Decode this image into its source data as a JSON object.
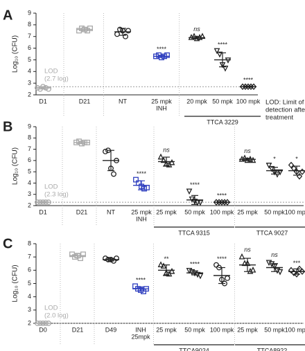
{
  "chart_data": [
    {
      "type": "scatter",
      "panel": "A",
      "ylabel": "Log₁₀ (CFU)",
      "ylim": [
        2,
        9
      ],
      "yticks": [
        2,
        3,
        4,
        5,
        6,
        7,
        8,
        9
      ],
      "lod": 2.7,
      "lod_label": [
        "LOD",
        "(2.7 log)"
      ],
      "note": [
        "LOD: Limit of",
        "detection after",
        "treatment"
      ],
      "dividers": [
        1,
        2,
        4
      ],
      "spans": [
        {
          "label": "TTCA 3229",
          "first": 4,
          "last": 6
        }
      ],
      "groups": [
        {
          "label": [
            "D1"
          ],
          "marker": "circle",
          "color": "#aaaaaa",
          "values": [
            2.6,
            2.5,
            2.7,
            2.6,
            2.5
          ],
          "mean": 2.6,
          "sd": 0.1
        },
        {
          "label": [
            "D21"
          ],
          "marker": "square",
          "color": "#aaaaaa",
          "values": [
            7.5,
            7.7,
            7.6,
            7.5,
            7.7
          ],
          "mean": 7.6,
          "sd": 0.1
        },
        {
          "label": [
            "NT"
          ],
          "marker": "circle",
          "color": "#222222",
          "values": [
            7.2,
            7.6,
            7.5,
            7.0,
            7.5
          ],
          "mean": 7.4,
          "sd": 0.3
        },
        {
          "label": [
            "25 mpk",
            "INH"
          ],
          "marker": "square",
          "color": "#2f3fbf",
          "values": [
            5.3,
            5.4,
            5.2,
            5.3,
            5.4
          ],
          "mean": 5.3,
          "sd": 0.1,
          "sig": "****"
        },
        {
          "label": [
            "20 mpk"
          ],
          "marker": "triangle",
          "color": "#222222",
          "values": [
            6.9,
            7.0,
            6.8,
            6.9,
            7.0
          ],
          "mean": 6.9,
          "sd": 0.1,
          "sig": "ns"
        },
        {
          "label": [
            "50 mpk"
          ],
          "marker": "triangle-down",
          "color": "#222222",
          "values": [
            5.8,
            5.5,
            4.6,
            4.3,
            5.0
          ],
          "mean": 5.0,
          "sd": 0.6,
          "sig": "****"
        },
        {
          "label": [
            "100 mpk"
          ],
          "marker": "diamond",
          "color": "#222222",
          "values": [
            2.7,
            2.7,
            2.7,
            2.7,
            2.7
          ],
          "mean": 2.7,
          "sd": 0.05,
          "sig": "****"
        }
      ]
    },
    {
      "type": "scatter",
      "panel": "B",
      "ylabel": "Log₁₀ (CFU)",
      "ylim": [
        2,
        9
      ],
      "yticks": [
        2,
        3,
        4,
        5,
        6,
        7,
        8,
        9
      ],
      "lod": 2.3,
      "lod_label": [
        "LOD",
        "(2.3 log)"
      ],
      "dividers": [
        1,
        2,
        4,
        7
      ],
      "spans": [
        {
          "label": "TTCA 9315",
          "first": 4,
          "last": 6
        },
        {
          "label": "TTCA 9027",
          "first": 7,
          "last": 9
        }
      ],
      "groups": [
        {
          "label": [
            "D1"
          ],
          "marker": "circle",
          "color": "#aaaaaa",
          "values": [
            2.3,
            2.3,
            2.3,
            2.3,
            2.3
          ],
          "mean": 2.3,
          "sd": 0.05
        },
        {
          "label": [
            "D21"
          ],
          "marker": "square",
          "color": "#aaaaaa",
          "values": [
            7.6,
            7.7,
            7.5,
            7.6,
            7.6
          ],
          "mean": 7.6,
          "sd": 0.1
        },
        {
          "label": [
            "NT"
          ],
          "marker": "circle",
          "color": "#222222",
          "values": [
            6.8,
            6.9,
            5.3,
            4.8,
            6.0
          ],
          "mean": 6.0,
          "sd": 0.9
        },
        {
          "label": [
            "25 mpk",
            "INH"
          ],
          "marker": "square",
          "color": "#2f3fbf",
          "values": [
            4.3,
            4.0,
            3.7,
            3.5,
            3.6
          ],
          "mean": 3.8,
          "sd": 0.4,
          "sig": "****"
        },
        {
          "label": [
            "25 mpk"
          ],
          "marker": "triangle",
          "color": "#222222",
          "values": [
            6.3,
            6.0,
            5.7,
            5.6,
            5.8
          ],
          "mean": 5.9,
          "sd": 0.4,
          "sig": "ns"
        },
        {
          "label": [
            "50 mpk"
          ],
          "marker": "triangle-down",
          "color": "#222222",
          "values": [
            3.3,
            2.6,
            2.4,
            2.3,
            2.3
          ],
          "mean": 2.5,
          "sd": 0.4,
          "sig": "****"
        },
        {
          "label": [
            "100 mpk"
          ],
          "marker": "diamond",
          "color": "#222222",
          "values": [
            2.3,
            2.3,
            2.3,
            2.3,
            2.3
          ],
          "mean": 2.3,
          "sd": 0.05,
          "sig": "****"
        },
        {
          "label": [
            "25 mpk"
          ],
          "marker": "triangle",
          "color": "#222222",
          "values": [
            6.1,
            6.2,
            6.0,
            6.1,
            6.0
          ],
          "mean": 6.1,
          "sd": 0.1,
          "sig": "ns"
        },
        {
          "label": [
            "50 mpk"
          ],
          "marker": "triangle-down",
          "color": "#222222",
          "values": [
            5.6,
            5.3,
            5.0,
            4.8,
            5.0
          ],
          "mean": 5.1,
          "sd": 0.3,
          "sig": "*"
        },
        {
          "label": [
            "100 mpk"
          ],
          "marker": "diamond",
          "color": "#222222",
          "values": [
            5.6,
            5.3,
            5.0,
            4.6,
            5.0
          ],
          "mean": 5.1,
          "sd": 0.4,
          "sig": "*"
        }
      ]
    },
    {
      "type": "scatter",
      "panel": "C",
      "ylabel": "Log₁₀ (CFU)",
      "ylim": [
        2,
        8
      ],
      "yticks": [
        2,
        3,
        4,
        5,
        6,
        7,
        8
      ],
      "lod": 2.0,
      "lod_label": [
        "LOD",
        "(2.0 log)"
      ],
      "dividers": [
        1,
        2,
        4,
        7
      ],
      "spans": [
        {
          "label": "TTCA9024",
          "first": 4,
          "last": 6
        },
        {
          "label": "TTCA8922",
          "first": 7,
          "last": 9
        }
      ],
      "groups": [
        {
          "label": [
            "D0"
          ],
          "marker": "circle",
          "color": "#aaaaaa",
          "values": [
            2.0,
            2.0,
            2.0,
            2.0,
            2.0
          ],
          "mean": 2.0,
          "sd": 0.05
        },
        {
          "label": [
            "D21"
          ],
          "marker": "square",
          "color": "#aaaaaa",
          "values": [
            7.2,
            7.0,
            7.1,
            6.9,
            7.2
          ],
          "mean": 7.1,
          "sd": 0.15
        },
        {
          "label": [
            "D49"
          ],
          "marker": "circle",
          "color": "#222222",
          "values": [
            6.9,
            6.8,
            6.8,
            6.7,
            6.9
          ],
          "mean": 6.8,
          "sd": 0.1
        },
        {
          "label": [
            "INH",
            "25mpk"
          ],
          "marker": "square",
          "color": "#2f3fbf",
          "values": [
            4.8,
            4.6,
            4.5,
            4.4,
            4.6
          ],
          "mean": 4.6,
          "sd": 0.15,
          "sig": "****"
        },
        {
          "label": [
            "25 mpk"
          ],
          "marker": "triangle",
          "color": "#222222",
          "values": [
            6.4,
            6.3,
            5.8,
            5.7,
            5.9
          ],
          "mean": 6.0,
          "sd": 0.4,
          "sig": "**"
        },
        {
          "label": [
            "50 mpk"
          ],
          "marker": "triangle-down",
          "color": "#222222",
          "values": [
            6.0,
            5.9,
            5.8,
            5.7,
            5.6
          ],
          "mean": 5.8,
          "sd": 0.15,
          "sig": "****"
        },
        {
          "label": [
            "100 mpk"
          ],
          "marker": "circle",
          "color": "#222222",
          "values": [
            6.4,
            6.2,
            5.3,
            5.0,
            5.4
          ],
          "mean": 5.6,
          "sd": 0.6,
          "sig": "****"
        },
        {
          "label": [
            "25 mpk"
          ],
          "marker": "triangle",
          "color": "#222222",
          "values": [
            7.0,
            6.5,
            6.5,
            5.9,
            6.0
          ],
          "mean": 6.4,
          "sd": 0.5,
          "sig": "ns"
        },
        {
          "label": [
            "50 mpk"
          ],
          "marker": "triangle-down",
          "color": "#222222",
          "values": [
            6.6,
            6.5,
            6.3,
            6.0,
            5.9
          ],
          "mean": 6.2,
          "sd": 0.3,
          "sig": "ns"
        },
        {
          "label": [
            "100 mpk"
          ],
          "marker": "diamond",
          "color": "#222222",
          "values": [
            6.0,
            5.8,
            5.7,
            6.1,
            5.9
          ],
          "mean": 5.9,
          "sd": 0.2,
          "sig": "***"
        }
      ]
    }
  ]
}
